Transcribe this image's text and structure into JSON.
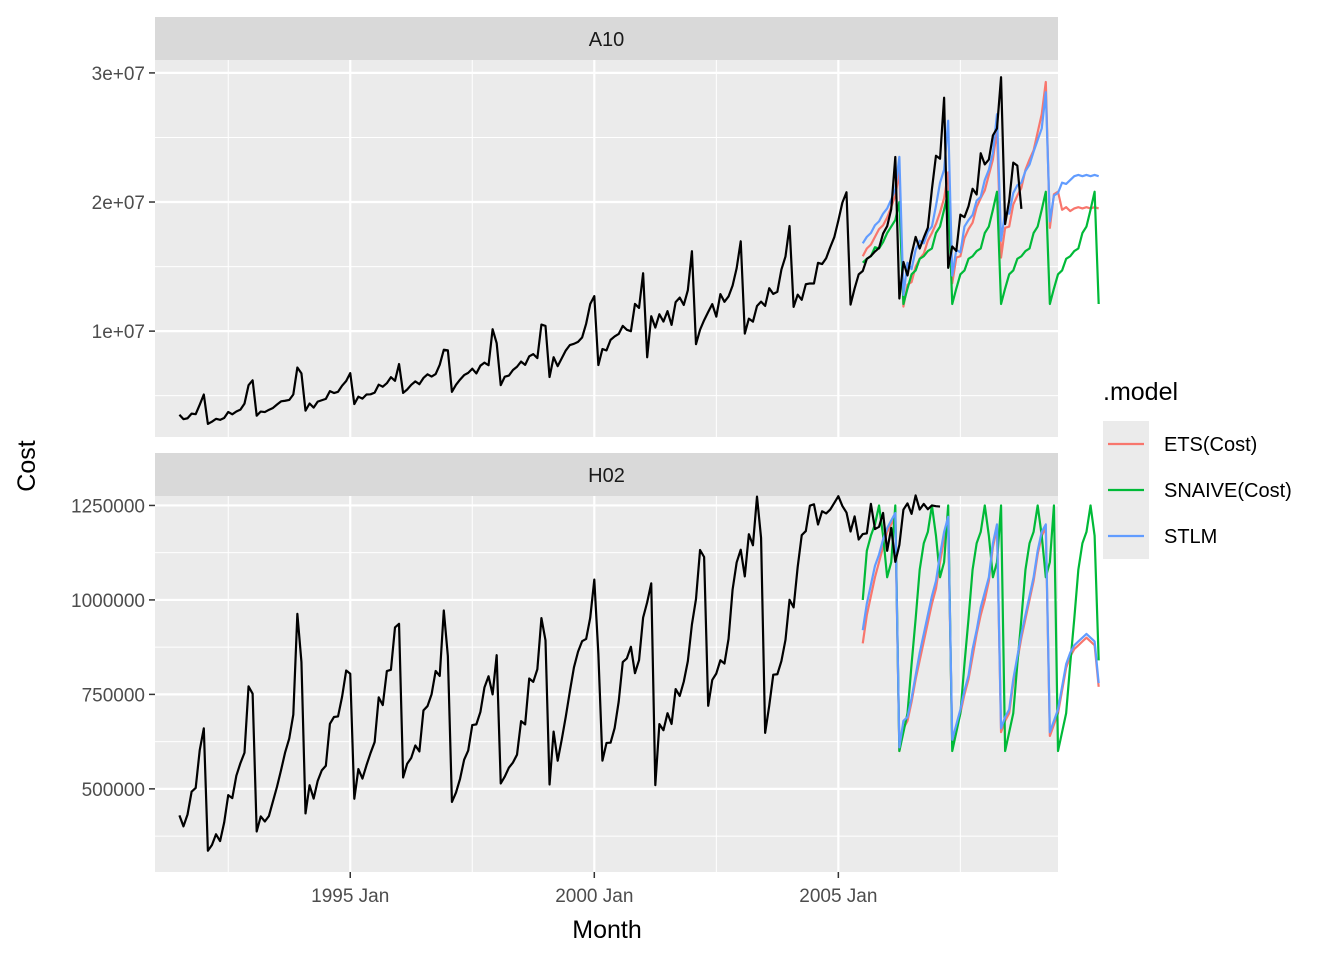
{
  "chart_data": {
    "type": "line",
    "xlabel": "Month",
    "ylabel": "Cost",
    "x_ticks": [
      "1995 Jan",
      "2000 Jan",
      "2005 Jan"
    ],
    "xlim": [
      "1991 Jan",
      "2009 Jul"
    ],
    "grid": true,
    "legend": {
      "title": ".model",
      "placement": "right",
      "entries": [
        {
          "name": "ETS(Cost)",
          "color": "#F8766D"
        },
        {
          "name": "SNAIVE(Cost)",
          "color": "#00BA38"
        },
        {
          "name": "STLM",
          "color": "#619CFF"
        }
      ]
    },
    "panels": [
      {
        "strip": "A10",
        "ylim": [
          1800000,
          31000000
        ],
        "y_ticks": [
          {
            "value": 10000000,
            "label": "1e+07"
          },
          {
            "value": 20000000,
            "label": "2e+07"
          },
          {
            "value": 30000000,
            "label": "3e+07"
          }
        ],
        "actual": {
          "start": "1991 Jul",
          "values": [
            3526591,
            3180891,
            3252221,
            3611003,
            3565869,
            4306371,
            5088335,
            2814520,
            2985811,
            3204780,
            3127578,
            3270523,
            3737851,
            3558776,
            3777202,
            3924490,
            4386531,
            5810541,
            6192068,
            3450857,
            3772307,
            3734303,
            3905399,
            4049687,
            4315566,
            4562185,
            4608662,
            4667851,
            5093841,
            7179962,
            6731473,
            3841278,
            4394399,
            4075942,
            4540660,
            4645874,
            4752299,
            5350915,
            5204314,
            5301517,
            5773811,
            6135402,
            6748786,
            4349744,
            4923186,
            4770023,
            5089540,
            5106094,
            5240870,
            5852680,
            5694093,
            5966049,
            6431891,
            6151678,
            7453221,
            5213840,
            5477470,
            5840006,
            6108004,
            5888946,
            6371493,
            6657102,
            6482618,
            6676155,
            7390590,
            8557718,
            8511264,
            5297658,
            5845665,
            6245466,
            6595698,
            6767604,
            7089519,
            6723290,
            7323302,
            7558412,
            7356780,
            10150215,
            9064452,
            5815950,
            6474108,
            6556014,
            6989493,
            7240839,
            7640009,
            7386849,
            8049617,
            8219028,
            7911005,
            10509765,
            10404950,
            6441452,
            7975993,
            7286130,
            7895626,
            8506536,
            8924413,
            9017543,
            9170463,
            9504208,
            10578458,
            12097390,
            12711127,
            7370616,
            8614519,
            8507625,
            9322545,
            9588937,
            9778826,
            10407003,
            10101318,
            9995618,
            12108447,
            11796648,
            14489290,
            7975393,
            11157962,
            10278186,
            11309004,
            10741916,
            11546587,
            10484063,
            12247463,
            12597779,
            12029089,
            13174024,
            16192008,
            8988813,
            10106591,
            10843127,
            11483829,
            12091710,
            11124023,
            12868810,
            12271007,
            12683434,
            13526633,
            14879609,
            16959519,
            9806659,
            10967617,
            10731719,
            11948398,
            12283095,
            11953054,
            13325627,
            12878981,
            13049009,
            14766700,
            15776270,
            18148870,
            11873939,
            12822463,
            12424916,
            13630440,
            13690530,
            13689574,
            15291547,
            15194500,
            15647419,
            16497340,
            17275580,
            18570450,
            19962190,
            20754510,
            12053670,
            13306010,
            14395960,
            14654660,
            15597830,
            15822560,
            16166280,
            16446000,
            17555150,
            18126700,
            19436340,
            23492750,
            12525620,
            15357770,
            14311430,
            15961180,
            17297030,
            16399930,
            17245850,
            18011260,
            20989270,
            23583010,
            23357190,
            28076690,
            14900990,
            16555340,
            16215410,
            19022800,
            18829120,
            19672650,
            21025770,
            20587340,
            23778920,
            22917250,
            23288150,
            25162460,
            25700860,
            29665360,
            18290550,
            20109260,
            23054430,
            22819170,
            19469480
          ]
        },
        "forecasts": {
          "start": "2005 Jul",
          "ETS(Cost)": [
            15800000,
            16400000,
            16700000,
            17300000,
            17900000,
            18200000,
            18800000,
            19600000,
            20500000,
            22300000,
            11900000,
            13600000,
            13800000,
            15000000,
            15600000,
            16000000,
            17000000,
            17600000,
            18300000,
            19200000,
            20300000,
            22300000,
            13700000,
            15700000,
            15800000,
            17200000,
            17900000,
            18400000,
            19600000,
            20300000,
            20900000,
            22100000,
            23300000,
            25600000,
            15700000,
            18000000,
            18100000,
            19800000,
            20500000,
            21100000,
            22500000,
            23300000,
            24000000,
            25400000,
            26800000,
            29300000,
            18000000,
            20600000,
            20800000,
            19400000,
            19600000,
            19300000,
            19500000,
            19600000,
            19500000,
            19600000,
            19500000,
            19600000,
            19500000
          ],
          "SNAIVE(Cost)": [
            15300000,
            15600000,
            15800000,
            16500000,
            16400000,
            16900000,
            17600000,
            18100000,
            18600000,
            20000000,
            12100000,
            13300000,
            14400000,
            14700000,
            15600000,
            15800000,
            16200000,
            16400000,
            17600000,
            18100000,
            19400000,
            20800000,
            12100000,
            13300000,
            14400000,
            14700000,
            15600000,
            15800000,
            16200000,
            16400000,
            17600000,
            18100000,
            19400000,
            20800000,
            12100000,
            13300000,
            14400000,
            14700000,
            15600000,
            15800000,
            16200000,
            16400000,
            17600000,
            18100000,
            19400000,
            20800000,
            12100000,
            13300000,
            14400000,
            14700000,
            15600000,
            15800000,
            16200000,
            16400000,
            17600000,
            18100000,
            19400000,
            20800000,
            12100000
          ],
          "STLM": [
            16800000,
            17300000,
            17600000,
            18200000,
            18500000,
            19100000,
            19500000,
            20200000,
            21000000,
            23500000,
            12800000,
            15300000,
            14800000,
            16300000,
            17000000,
            16800000,
            17700000,
            18100000,
            19700000,
            21500000,
            22500000,
            26300000,
            14300000,
            16300000,
            16100000,
            18100000,
            18600000,
            19000000,
            20100000,
            20400000,
            21700000,
            22500000,
            23800000,
            26800000,
            17000000,
            19200000,
            19100000,
            20700000,
            21300000,
            21500000,
            22400000,
            22900000,
            23900000,
            24800000,
            25700000,
            28500000,
            18500000,
            20500000,
            20700000,
            21500000,
            21400000,
            21700000,
            22000000,
            22100000,
            22000000,
            22100000,
            22000000,
            22100000,
            22000000
          ]
        }
      },
      {
        "strip": "H02",
        "ylim": [
          280000,
          1275000
        ],
        "y_ticks": [
          {
            "value": 500000,
            "label": "500000"
          },
          {
            "value": 750000,
            "label": "750000"
          },
          {
            "value": 1000000,
            "label": "1000000"
          },
          {
            "value": 1250000,
            "label": "1250000"
          }
        ],
        "actual": {
          "start": "1991 Jul",
          "values": [
            429795,
            400906,
            432159,
            492543,
            502369,
            602652,
            660119,
            336220,
            351348,
            379808,
            361801,
            410534,
            483389,
            475463,
            534846,
            568070,
            595546,
            771258,
            751837,
            387213,
            427171,
            413691,
            428109,
            466977,
            505915,
            549977,
            596838,
            632958,
            696339,
            963095,
            836046,
            434937,
            509564,
            474271,
            521213,
            548963,
            561138,
            672138,
            690186,
            691735,
            744051,
            813111,
            804668,
            473879,
            552463,
            527218,
            562789,
            595066,
            623843,
            742167,
            721806,
            811617,
            815046,
            927119,
            936694,
            530094,
            566484,
            582163,
            614882,
            599089,
            707806,
            719091,
            750440,
            811917,
            798906,
            972207,
            851453,
            465396,
            490212,
            526738,
            577209,
            601283,
            668810,
            670622,
            703553,
            768707,
            797934,
            750024,
            853823,
            514226,
            532546,
            556018,
            569624,
            590428,
            679236,
            670612,
            792010,
            783211,
            816567,
            951924,
            893162,
            511566,
            651556,
            574512,
            630906,
            691766,
            758418,
            821617,
            862919,
            890718,
            896712,
            952826,
            1053660,
            857062,
            574612,
            621468,
            622184,
            660934,
            731016,
            835640,
            845106,
            876034,
            806210,
            840420,
            953094,
            993917,
            1043812,
            509838,
            671396,
            655211,
            700244,
            671826,
            764130,
            745882,
            783810,
            838036,
            935118,
            1002360,
            1132120,
            1113570,
            719730,
            788254,
            805318,
            840506,
            831580,
            896708,
            1027270,
            1099140,
            1132830,
            1062150,
            1173940,
            1144680,
            1273530,
            1164170,
            648116,
            719530,
            802154,
            803230,
            838214,
            894004,
            1000330,
            980166,
            1087020,
            1171380,
            1182210,
            1249440,
            1253180,
            1199520,
            1234570,
            1228870,
            1239180,
            1256540,
            1274520,
            1248340,
            1231220,
            1180950,
            1220940,
            1159900,
            1174200,
            1176130,
            1254220,
            1187440,
            1193550,
            1230200,
            1129930,
            1190530,
            1100780,
            1145450,
            1239050,
            1255480,
            1227770,
            1276570,
            1239200,
            1253930,
            1240000,
            1250000,
            1248000,
            1247000
          ]
        },
        "forecasts": {
          "start": "2005 Jul",
          "ETS(Cost)": [
            885000,
            960000,
            1010000,
            1060000,
            1100000,
            1140000,
            1180000,
            1200000,
            1220000,
            600000,
            660000,
            680000,
            730000,
            790000,
            840000,
            890000,
            940000,
            990000,
            1030000,
            1100000,
            1160000,
            1200000,
            620000,
            660000,
            700000,
            750000,
            790000,
            850000,
            910000,
            960000,
            1000000,
            1050000,
            1140000,
            1190000,
            650000,
            680000,
            700000,
            780000,
            840000,
            900000,
            950000,
            1000000,
            1050000,
            1120000,
            1170000,
            1190000,
            640000,
            670000,
            700000,
            760000,
            820000,
            850000,
            870000,
            880000,
            890000,
            900000,
            890000,
            880000,
            770000
          ],
          "SNAIVE(Cost)": [
            1000000,
            1130000,
            1170000,
            1200000,
            1250000,
            1170000,
            1060000,
            1100000,
            1250000,
            600000,
            650000,
            700000,
            830000,
            950000,
            1080000,
            1150000,
            1180000,
            1250000,
            1170000,
            1060000,
            1100000,
            1250000,
            600000,
            650000,
            700000,
            830000,
            950000,
            1080000,
            1150000,
            1180000,
            1250000,
            1170000,
            1060000,
            1100000,
            1250000,
            600000,
            650000,
            700000,
            830000,
            950000,
            1080000,
            1150000,
            1180000,
            1250000,
            1170000,
            1060000,
            1100000,
            1250000,
            600000,
            650000,
            700000,
            830000,
            950000,
            1080000,
            1150000,
            1180000,
            1250000,
            1170000,
            840000
          ],
          "STLM": [
            920000,
            990000,
            1040000,
            1090000,
            1120000,
            1160000,
            1190000,
            1210000,
            1230000,
            610000,
            680000,
            690000,
            740000,
            800000,
            860000,
            910000,
            960000,
            1010000,
            1050000,
            1120000,
            1180000,
            1220000,
            630000,
            670000,
            710000,
            760000,
            800000,
            870000,
            920000,
            980000,
            1020000,
            1060000,
            1150000,
            1200000,
            660000,
            690000,
            710000,
            790000,
            850000,
            910000,
            960000,
            1010000,
            1060000,
            1130000,
            1180000,
            1200000,
            650000,
            680000,
            710000,
            770000,
            830000,
            860000,
            880000,
            890000,
            900000,
            910000,
            900000,
            890000,
            780000
          ]
        }
      }
    ]
  }
}
